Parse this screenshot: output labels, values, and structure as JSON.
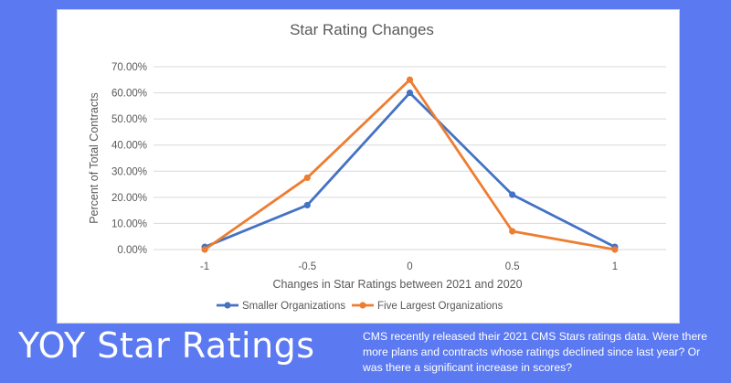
{
  "footer": {
    "headline": "YOY Star Ratings",
    "description": "CMS recently released their 2021 CMS Stars ratings data. Were there more plans and contracts whose ratings declined since last year? Or was there a significant increase in scores?"
  },
  "colors": {
    "background": "#5b79f1",
    "smaller": "#4472c4",
    "largest": "#ed7d31",
    "grid": "#d9d9d9"
  },
  "chart_data": {
    "type": "line",
    "title": "Star Rating Changes",
    "xlabel": "Changes in Star Ratings between 2021 and 2020",
    "ylabel": "Percent of Total Contracts",
    "categories": [
      "-1",
      "-0.5",
      "0",
      "0.5",
      "1"
    ],
    "ylim": [
      0,
      70
    ],
    "y_ticks": [
      "0.00%",
      "10.00%",
      "20.00%",
      "30.00%",
      "40.00%",
      "50.00%",
      "60.00%",
      "70.00%"
    ],
    "grid": true,
    "legend_position": "bottom",
    "series": [
      {
        "name": "Smaller Organizations",
        "color": "#4472c4",
        "values": [
          1,
          17,
          60,
          21,
          1
        ]
      },
      {
        "name": "Five Largest Organizations",
        "color": "#ed7d31",
        "values": [
          0,
          27.5,
          65,
          7,
          0
        ]
      }
    ]
  }
}
